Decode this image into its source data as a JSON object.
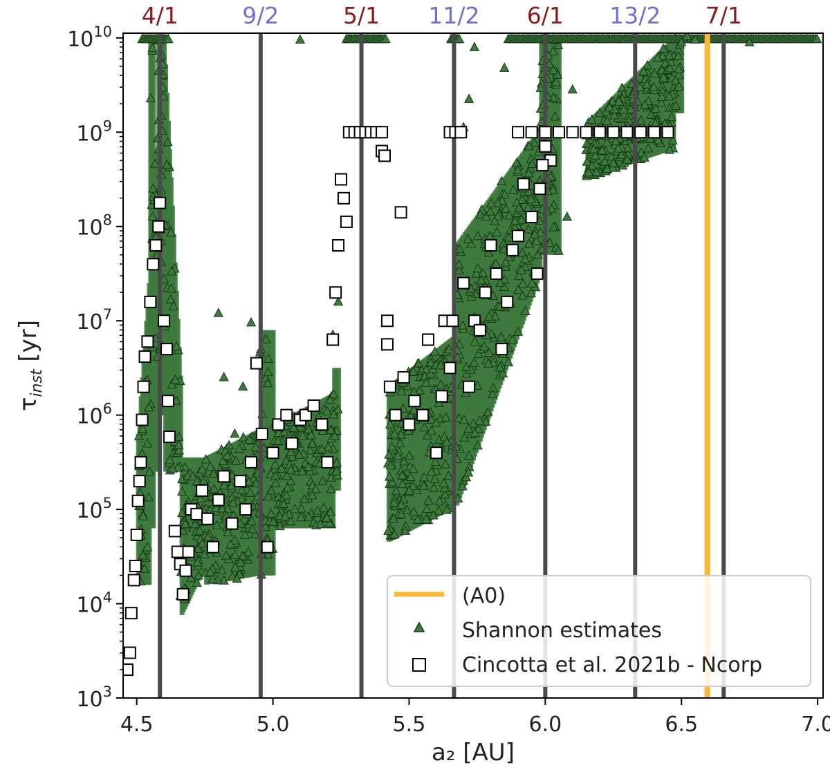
{
  "chart_data": {
    "type": "scatter",
    "xlabel": "a₂ [AU]",
    "ylabel_main": "τ",
    "ylabel_sub": "inst",
    "ylabel_unit": " [yr]",
    "xlim": [
      4.45,
      7.02
    ],
    "ylim_log10": [
      3,
      10.05
    ],
    "yscale": "log",
    "grid": false,
    "legend_placement": "lower-right",
    "x_ticks": [
      4.5,
      5.0,
      5.5,
      6.0,
      6.5,
      7.0
    ],
    "x_tick_labels": [
      "4.5",
      "5.0",
      "5.5",
      "6.0",
      "6.5",
      "7.0"
    ],
    "y_ticks_log10": [
      3,
      4,
      5,
      6,
      7,
      8,
      9,
      10
    ],
    "y_tick_base": "10",
    "y_tick_exps": [
      "3",
      "4",
      "5",
      "6",
      "7",
      "8",
      "9",
      "10"
    ],
    "colors": {
      "resonance_line": "#4a4a4a",
      "integer_label": "#8b1a1a",
      "half_label": "#6f6fd6",
      "a0_line": "#ffb733",
      "shannon_fill": "#3e7a3e",
      "shannon_edge": "#143614",
      "ncorp_fill": "#ffffff",
      "ncorp_edge": "#000000"
    },
    "resonances": [
      {
        "label": "4/1",
        "a": 4.585,
        "kind": "integer"
      },
      {
        "label": "9/2",
        "a": 4.955,
        "kind": "half"
      },
      {
        "label": "5/1",
        "a": 5.325,
        "kind": "integer"
      },
      {
        "label": "11/2",
        "a": 5.665,
        "kind": "half"
      },
      {
        "label": "6/1",
        "a": 6.0,
        "kind": "integer"
      },
      {
        "label": "13/2",
        "a": 6.33,
        "kind": "half"
      },
      {
        "label": "7/1",
        "a": 6.655,
        "kind": "integer"
      }
    ],
    "a0_line": {
      "a": 6.595
    },
    "legend": {
      "a0": "(A0)",
      "shannon": "Shannon estimates",
      "ncorp": "Cincotta et al. 2021b - Ncorp"
    },
    "series": [
      {
        "name": "Cincotta et al. 2021b - Ncorp",
        "marker": "square",
        "points": [
          [
            4.455,
            3.48
          ],
          [
            4.46,
            3.3
          ],
          [
            4.465,
            3.3
          ],
          [
            4.475,
            3.48
          ],
          [
            4.48,
            3.9
          ],
          [
            4.49,
            4.25
          ],
          [
            4.495,
            4.4
          ],
          [
            4.5,
            4.73
          ],
          [
            4.505,
            5.09
          ],
          [
            4.51,
            5.3
          ],
          [
            4.515,
            5.5
          ],
          [
            4.52,
            5.95
          ],
          [
            4.525,
            6.3
          ],
          [
            4.53,
            6.62
          ],
          [
            4.54,
            6.78
          ],
          [
            4.55,
            7.2
          ],
          [
            4.56,
            7.6
          ],
          [
            4.57,
            7.8
          ],
          [
            4.58,
            8.0
          ],
          [
            4.585,
            8.25
          ],
          [
            4.6,
            7.0
          ],
          [
            4.61,
            6.7
          ],
          [
            4.615,
            6.15
          ],
          [
            4.62,
            5.77
          ],
          [
            4.64,
            4.77
          ],
          [
            4.65,
            4.55
          ],
          [
            4.66,
            4.42
          ],
          [
            4.67,
            4.1
          ],
          [
            4.68,
            4.35
          ],
          [
            4.69,
            4.55
          ],
          [
            4.7,
            5.0
          ],
          [
            4.72,
            4.95
          ],
          [
            4.74,
            5.2
          ],
          [
            4.76,
            4.9
          ],
          [
            4.78,
            4.6
          ],
          [
            4.8,
            5.1
          ],
          [
            4.82,
            5.35
          ],
          [
            4.85,
            4.85
          ],
          [
            4.88,
            5.3
          ],
          [
            4.9,
            5.0
          ],
          [
            4.92,
            5.5
          ],
          [
            4.94,
            6.55
          ],
          [
            4.96,
            5.8
          ],
          [
            4.98,
            4.6
          ],
          [
            5.0,
            5.6
          ],
          [
            5.02,
            5.9
          ],
          [
            5.05,
            6.0
          ],
          [
            5.07,
            5.7
          ],
          [
            5.1,
            5.95
          ],
          [
            5.12,
            6.0
          ],
          [
            5.15,
            6.1
          ],
          [
            5.18,
            5.9
          ],
          [
            5.2,
            5.5
          ],
          [
            5.22,
            6.8
          ],
          [
            5.23,
            7.3
          ],
          [
            5.24,
            7.8
          ],
          [
            5.25,
            8.5
          ],
          [
            5.26,
            8.3
          ],
          [
            5.27,
            8.05
          ],
          [
            5.28,
            9.0
          ],
          [
            5.3,
            9.0
          ],
          [
            5.32,
            9.0
          ],
          [
            5.34,
            9.0
          ],
          [
            5.36,
            9.0
          ],
          [
            5.38,
            9.0
          ],
          [
            5.4,
            9.0
          ],
          [
            5.4,
            8.8
          ],
          [
            5.41,
            8.75
          ],
          [
            5.42,
            7.0
          ],
          [
            5.42,
            6.75
          ],
          [
            5.43,
            6.3
          ],
          [
            5.45,
            6.0
          ],
          [
            5.47,
            8.15
          ],
          [
            5.48,
            6.4
          ],
          [
            5.5,
            5.9
          ],
          [
            5.52,
            6.15
          ],
          [
            5.55,
            6.0
          ],
          [
            5.57,
            6.8
          ],
          [
            5.6,
            5.6
          ],
          [
            5.62,
            6.2
          ],
          [
            5.63,
            7.0
          ],
          [
            5.65,
            6.5
          ],
          [
            5.66,
            7.0
          ],
          [
            5.65,
            9.0
          ],
          [
            5.67,
            9.0
          ],
          [
            5.69,
            9.0
          ],
          [
            5.7,
            7.4
          ],
          [
            5.72,
            6.3
          ],
          [
            5.74,
            7.0
          ],
          [
            5.76,
            6.9
          ],
          [
            5.78,
            7.3
          ],
          [
            5.8,
            7.8
          ],
          [
            5.82,
            7.5
          ],
          [
            5.84,
            6.7
          ],
          [
            5.86,
            7.2
          ],
          [
            5.88,
            7.75
          ],
          [
            5.9,
            7.9
          ],
          [
            5.92,
            8.45
          ],
          [
            5.95,
            8.1
          ],
          [
            5.97,
            7.5
          ],
          [
            5.98,
            8.4
          ],
          [
            5.9,
            9.0
          ],
          [
            5.95,
            9.0
          ],
          [
            6.0,
            9.0
          ],
          [
            6.05,
            9.0
          ],
          [
            6.1,
            9.0
          ],
          [
            6.15,
            9.0
          ],
          [
            6.2,
            9.0
          ],
          [
            6.25,
            9.0
          ],
          [
            6.3,
            9.0
          ],
          [
            6.35,
            9.0
          ],
          [
            6.4,
            9.0
          ],
          [
            6.45,
            9.0
          ],
          [
            6.0,
            8.85
          ],
          [
            6.02,
            8.7
          ],
          [
            5.99,
            8.65
          ]
        ]
      },
      {
        "name": "Shannon estimates",
        "marker": "triangle",
        "points": [
          [
            4.8,
            7.08
          ],
          [
            4.82,
            6.4
          ],
          [
            4.86,
            5.8
          ],
          [
            4.89,
            6.3
          ],
          [
            4.92,
            6.98
          ],
          [
            5.1,
            9.98
          ],
          [
            5.22,
            6.85
          ],
          [
            5.24,
            7.2
          ],
          [
            5.7,
            9.05
          ],
          [
            5.72,
            9.35
          ],
          [
            5.74,
            9.9
          ],
          [
            6.08,
            8.1
          ],
          [
            6.1,
            9.45
          ],
          [
            6.2,
            9.2
          ],
          [
            6.5,
            9.95
          ],
          [
            6.52,
            10.02
          ],
          [
            6.55,
            9.98
          ],
          [
            6.75,
            9.95
          ],
          [
            5.85,
            9.68
          ],
          [
            4.56,
            8.4
          ],
          [
            4.59,
            8.55
          ],
          [
            4.61,
            8.65
          ]
        ]
      }
    ]
  }
}
